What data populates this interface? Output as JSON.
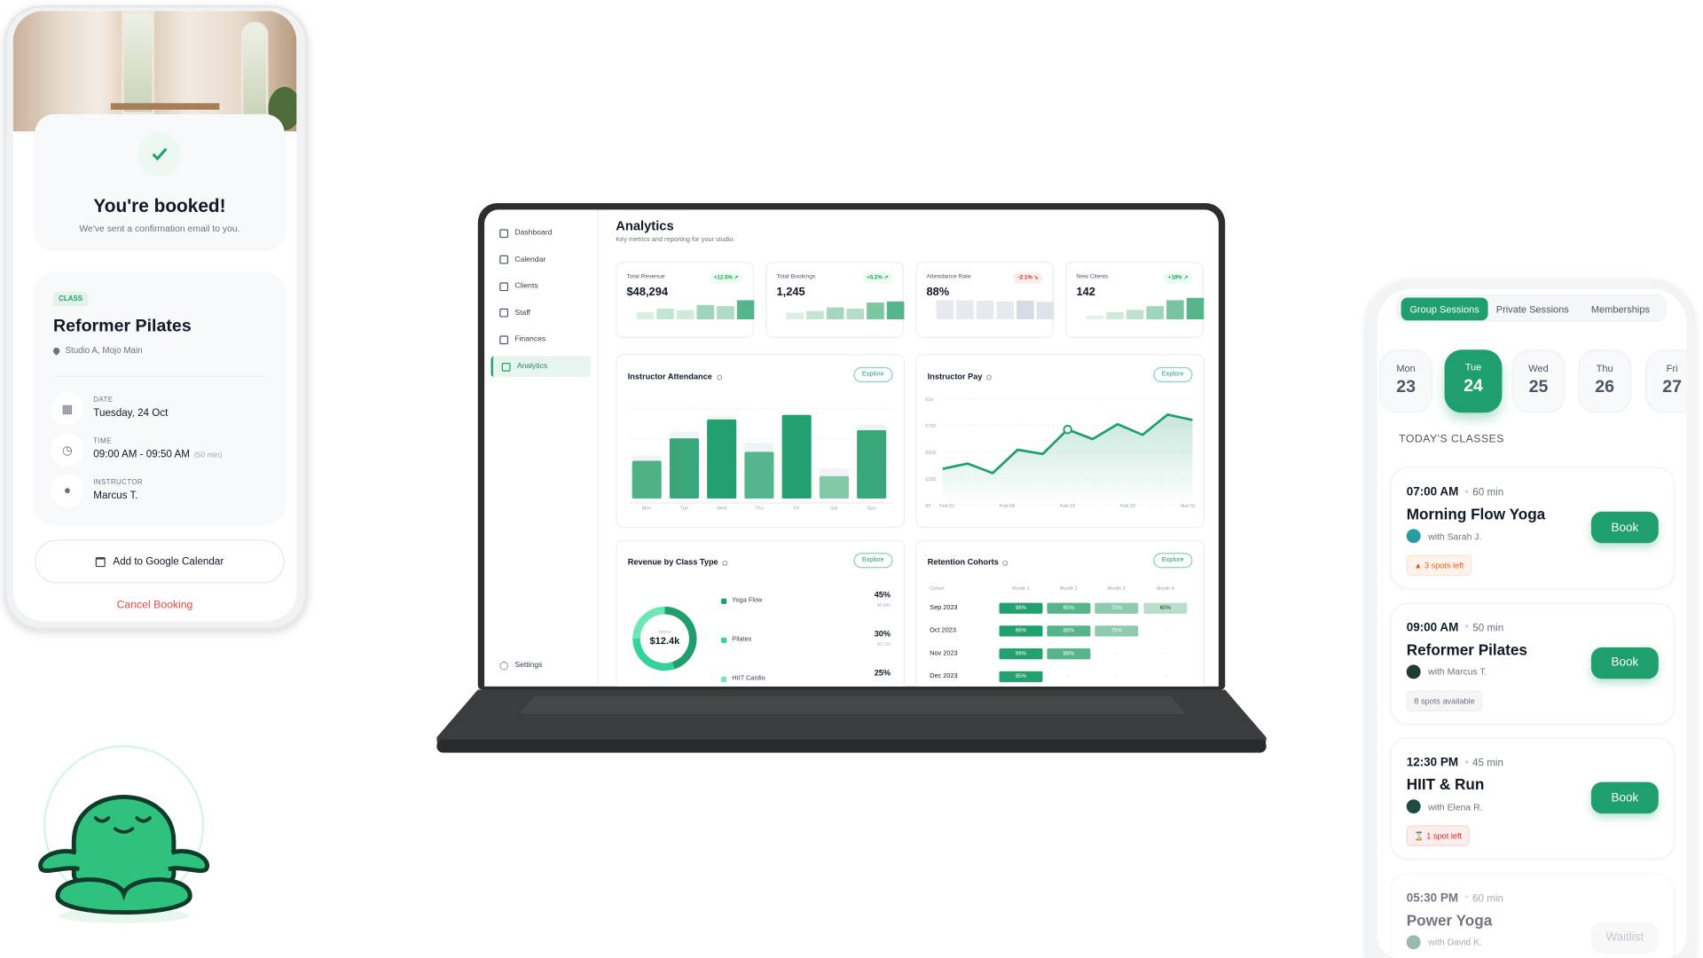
{
  "colors": {
    "accent": "#1f9e6e",
    "danger": "#ef4444",
    "warning": "#ea580c"
  },
  "booking_phone": {
    "title": "You're booked!",
    "subtitle": "We've sent a confirmation email to you.",
    "icon": "check-icon",
    "class_badge": "CLASS",
    "class_name": "Reformer Pilates",
    "location": "Studio A, Mojo Main",
    "details": [
      {
        "label": "DATE",
        "value": "Tuesday, 24 Oct",
        "icon": "calendar-icon"
      },
      {
        "label": "TIME",
        "value": "09:00 AM - 09:50 AM",
        "extra": "(50 min)",
        "icon": "clock-icon"
      },
      {
        "label": "INSTRUCTOR",
        "value": "Marcus T.",
        "icon": "person-icon"
      }
    ],
    "add_calendar": "Add to Google Calendar",
    "cancel": "Cancel Booking"
  },
  "dashboard": {
    "sidebar": [
      {
        "label": "Dashboard",
        "active": false
      },
      {
        "label": "Calendar",
        "active": false
      },
      {
        "label": "Clients",
        "active": false
      },
      {
        "label": "Staff",
        "active": false
      },
      {
        "label": "Finances",
        "active": false
      },
      {
        "label": "Analytics",
        "active": true
      }
    ],
    "settings": "Settings",
    "title": "Analytics",
    "subtitle": "Key metrics and reporting for your studio.",
    "kpis": [
      {
        "label": "Total Revenue",
        "value": "$48,294",
        "change": "+12.5%",
        "trend": "up",
        "bars": [
          30,
          45,
          38,
          60,
          55,
          80
        ]
      },
      {
        "label": "Total Bookings",
        "value": "1,245",
        "change": "+5.2%",
        "trend": "up",
        "bars": [
          28,
          35,
          50,
          45,
          70,
          75
        ]
      },
      {
        "label": "Attendance Rate",
        "value": "88%",
        "change": "-2.1%",
        "trend": "down",
        "bars": [
          80,
          80,
          78,
          75,
          78,
          73
        ]
      },
      {
        "label": "New Clients",
        "value": "142",
        "change": "+18%",
        "trend": "up",
        "bars": [
          15,
          30,
          40,
          55,
          80,
          90
        ]
      }
    ],
    "explore": "Explore"
  },
  "chart_data": [
    {
      "type": "bar",
      "title": "Instructor Attendance",
      "categories": [
        "Mon",
        "Tue",
        "Wed",
        "Thu",
        "Fri",
        "Sat",
        "Sun"
      ],
      "series": [
        {
          "values": [
            42,
            67,
            88,
            52,
            93,
            25,
            76
          ]
        },
        {
          "values": [
            48,
            74,
            92,
            62,
            94,
            33,
            82
          ]
        }
      ],
      "ylim": [
        0,
        100
      ],
      "grid": true
    },
    {
      "type": "area",
      "title": "Instructor Pay",
      "x_ticks": [
        "Feb 01",
        "Feb 08",
        "Feb 15",
        "Feb 22",
        "Mar 01"
      ],
      "y_ticks": [
        "€0",
        "€250",
        "€500",
        "€750",
        "€1k"
      ],
      "values": [
        340,
        390,
        300,
        520,
        480,
        710,
        620,
        760,
        660,
        850,
        800
      ],
      "highlight_index": 5,
      "ylim": [
        0,
        1000
      ],
      "grid": true
    },
    {
      "type": "pie",
      "title": "Revenue by Class Type",
      "center_label": "TOTAL",
      "center_value": "$12.4k",
      "slices": [
        {
          "name": "Yoga Flow",
          "pct": "45%",
          "amount": "$5,580",
          "value": 45,
          "color": "#1f9e6e"
        },
        {
          "name": "Pilates",
          "pct": "30%",
          "amount": "$3,720",
          "value": 30,
          "color": "#34d399"
        },
        {
          "name": "HIIT Cardio",
          "pct": "25%",
          "value": 25,
          "color": "#6ee7b7"
        }
      ]
    },
    {
      "type": "table",
      "title": "Retention Cohorts",
      "columns": [
        "Cohort",
        "Month 1",
        "Month 2",
        "Month 3",
        "Month 4"
      ],
      "rows": [
        [
          "Sep 2023",
          "98%",
          "85%",
          "72%",
          "60%"
        ],
        [
          "Oct 2023",
          "96%",
          "88%",
          "75%",
          "--"
        ],
        [
          "Nov 2023",
          "99%",
          "89%",
          "--",
          "--"
        ],
        [
          "Dec 2023",
          "95%",
          "--",
          "--",
          "--"
        ]
      ]
    }
  ],
  "schedule_phone": {
    "tabs": [
      {
        "label": "Group Sessions",
        "active": true
      },
      {
        "label": "Private Sessions",
        "active": false
      },
      {
        "label": "Memberships",
        "active": false
      }
    ],
    "days": [
      {
        "name": "Mon",
        "num": "23"
      },
      {
        "name": "Tue",
        "num": "24",
        "active": true
      },
      {
        "name": "Wed",
        "num": "25"
      },
      {
        "name": "Thu",
        "num": "26"
      },
      {
        "name": "Fri",
        "num": "27"
      }
    ],
    "section": "TODAY'S CLASSES",
    "classes": [
      {
        "time": "07:00 AM",
        "duration": "60 min",
        "name": "Morning Flow Yoga",
        "instructor": "with Sarah J.",
        "tag": "3 spots left",
        "tag_type": "warning",
        "action": "Book"
      },
      {
        "time": "09:00 AM",
        "duration": "50 min",
        "name": "Reformer Pilates",
        "instructor": "with Marcus T.",
        "tag": "8 spots available",
        "tag_type": "neutral",
        "action": "Book"
      },
      {
        "time": "12:30 PM",
        "duration": "45 min",
        "name": "HIIT & Run",
        "instructor": "with Elena R.",
        "tag": "1 spot left",
        "tag_type": "danger",
        "action": "Book"
      },
      {
        "time": "05:30 PM",
        "duration": "60 min",
        "name": "Power Yoga",
        "instructor": "with David K.",
        "action": "Waitlist"
      }
    ]
  }
}
